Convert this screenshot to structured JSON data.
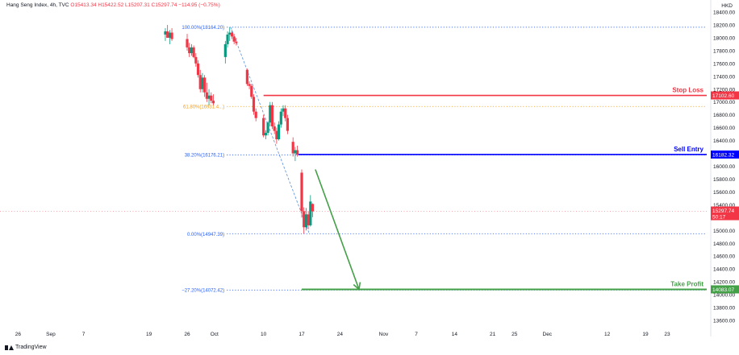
{
  "header": {
    "symbol": "Hang Seng Index, 4h, TVC",
    "open": "O15413.34",
    "high": "H15422.52",
    "low": "L15207.31",
    "close": "C15297.74",
    "change": "−114.95 (−0.75%)"
  },
  "currency": "HKD",
  "footer": {
    "brand": "TradingView"
  },
  "chart_data": {
    "type": "candlestick",
    "ylim": [
      13600,
      18400
    ],
    "y_ticks": [
      13600,
      13800,
      14000,
      14200,
      14400,
      14600,
      14800,
      15000,
      15200,
      15400,
      15600,
      15800,
      16000,
      16200,
      16400,
      16600,
      16800,
      17000,
      17200,
      17400,
      17600,
      17800,
      18000,
      18200,
      18400
    ],
    "x_labels": [
      {
        "label": "26",
        "day": -5
      },
      {
        "label": "Sep",
        "day": 1
      },
      {
        "label": "7",
        "day": 7
      },
      {
        "label": "19",
        "day": 19
      },
      {
        "label": "26",
        "day": 26
      },
      {
        "label": "Oct",
        "day": 31
      },
      {
        "label": "10",
        "day": 40
      },
      {
        "label": "17",
        "day": 47
      },
      {
        "label": "24",
        "day": 54
      },
      {
        "label": "Nov",
        "day": 62
      },
      {
        "label": "7",
        "day": 68
      },
      {
        "label": "14",
        "day": 75
      },
      {
        "label": "21",
        "day": 82
      },
      {
        "label": "25",
        "day": 86
      },
      {
        "label": "Dec",
        "day": 92
      },
      {
        "label": "12",
        "day": 103
      },
      {
        "label": "19",
        "day": 110
      },
      {
        "label": "23",
        "day": 114
      }
    ],
    "candles": [
      {
        "d": 22.0,
        "o": 18050,
        "h": 18150,
        "l": 17950,
        "c": 18100
      },
      {
        "d": 22.4,
        "o": 18100,
        "h": 18200,
        "l": 18000,
        "c": 18000
      },
      {
        "d": 22.8,
        "o": 18000,
        "h": 18120,
        "l": 17900,
        "c": 18080
      },
      {
        "d": 23.2,
        "o": 18080,
        "h": 18150,
        "l": 17950,
        "c": 17980
      },
      {
        "d": 26.0,
        "o": 17980,
        "h": 18060,
        "l": 17800,
        "c": 17850
      },
      {
        "d": 26.4,
        "o": 17850,
        "h": 17920,
        "l": 17700,
        "c": 17760
      },
      {
        "d": 26.8,
        "o": 17760,
        "h": 17900,
        "l": 17720,
        "c": 17850
      },
      {
        "d": 27.2,
        "o": 17850,
        "h": 17880,
        "l": 17680,
        "c": 17700
      },
      {
        "d": 27.6,
        "o": 17700,
        "h": 17760,
        "l": 17550,
        "c": 17600
      },
      {
        "d": 28.0,
        "o": 17600,
        "h": 17650,
        "l": 17380,
        "c": 17420
      },
      {
        "d": 28.4,
        "o": 17420,
        "h": 17500,
        "l": 17150,
        "c": 17200
      },
      {
        "d": 28.8,
        "o": 17200,
        "h": 17450,
        "l": 17150,
        "c": 17380
      },
      {
        "d": 29.2,
        "o": 17380,
        "h": 17420,
        "l": 17080,
        "c": 17150
      },
      {
        "d": 29.6,
        "o": 17150,
        "h": 17300,
        "l": 17000,
        "c": 17050
      },
      {
        "d": 30.0,
        "o": 17050,
        "h": 17200,
        "l": 16950,
        "c": 17100
      },
      {
        "d": 30.4,
        "o": 17100,
        "h": 17150,
        "l": 16980,
        "c": 17020
      },
      {
        "d": 30.8,
        "o": 17020,
        "h": 17120,
        "l": 16950,
        "c": 16980
      },
      {
        "d": 33.0,
        "o": 17700,
        "h": 17950,
        "l": 17600,
        "c": 17900
      },
      {
        "d": 33.4,
        "o": 17900,
        "h": 18100,
        "l": 17850,
        "c": 18050
      },
      {
        "d": 33.8,
        "o": 18050,
        "h": 18164,
        "l": 17950,
        "c": 18080
      },
      {
        "d": 34.2,
        "o": 18080,
        "h": 18120,
        "l": 17980,
        "c": 18020
      },
      {
        "d": 34.6,
        "o": 18020,
        "h": 18060,
        "l": 17900,
        "c": 17940
      },
      {
        "d": 35.0,
        "o": 17940,
        "h": 18000,
        "l": 17880,
        "c": 17920
      },
      {
        "d": 37.0,
        "o": 17500,
        "h": 17520,
        "l": 17250,
        "c": 17280
      },
      {
        "d": 37.4,
        "o": 17280,
        "h": 17320,
        "l": 17200,
        "c": 17250
      },
      {
        "d": 37.8,
        "o": 17250,
        "h": 17280,
        "l": 17050,
        "c": 17080
      },
      {
        "d": 38.2,
        "o": 17080,
        "h": 17120,
        "l": 16800,
        "c": 16850
      },
      {
        "d": 38.6,
        "o": 16850,
        "h": 16900,
        "l": 16700,
        "c": 16750
      },
      {
        "d": 40.0,
        "o": 16750,
        "h": 16800,
        "l": 16450,
        "c": 16480
      },
      {
        "d": 40.4,
        "o": 16480,
        "h": 16560,
        "l": 16420,
        "c": 16520
      },
      {
        "d": 40.8,
        "o": 16520,
        "h": 16700,
        "l": 16480,
        "c": 16680
      },
      {
        "d": 41.2,
        "o": 16680,
        "h": 17000,
        "l": 16620,
        "c": 16950
      },
      {
        "d": 41.6,
        "o": 16950,
        "h": 17000,
        "l": 16580,
        "c": 16620
      },
      {
        "d": 42.0,
        "o": 16620,
        "h": 16680,
        "l": 16500,
        "c": 16550
      },
      {
        "d": 42.4,
        "o": 16550,
        "h": 16600,
        "l": 16350,
        "c": 16420
      },
      {
        "d": 42.8,
        "o": 16420,
        "h": 16700,
        "l": 16400,
        "c": 16650
      },
      {
        "d": 43.2,
        "o": 16650,
        "h": 16900,
        "l": 16600,
        "c": 16850
      },
      {
        "d": 43.6,
        "o": 16850,
        "h": 16950,
        "l": 16780,
        "c": 16900
      },
      {
        "d": 44.0,
        "o": 16900,
        "h": 16950,
        "l": 16700,
        "c": 16750
      },
      {
        "d": 44.4,
        "o": 16750,
        "h": 16800,
        "l": 16500,
        "c": 16550
      },
      {
        "d": 45.4,
        "o": 16380,
        "h": 16450,
        "l": 16150,
        "c": 16200
      },
      {
        "d": 45.8,
        "o": 16200,
        "h": 16300,
        "l": 16080,
        "c": 16250
      },
      {
        "d": 46.2,
        "o": 16250,
        "h": 16320,
        "l": 16150,
        "c": 16180
      },
      {
        "d": 47.0,
        "o": 15900,
        "h": 15950,
        "l": 15200,
        "c": 15300
      },
      {
        "d": 47.4,
        "o": 15300,
        "h": 15360,
        "l": 14950,
        "c": 15050
      },
      {
        "d": 47.8,
        "o": 15050,
        "h": 15350,
        "l": 15000,
        "c": 15250
      },
      {
        "d": 48.2,
        "o": 15250,
        "h": 15300,
        "l": 15020,
        "c": 15080
      },
      {
        "d": 48.6,
        "o": 15080,
        "h": 15550,
        "l": 15060,
        "c": 15450
      },
      {
        "d": 49.0,
        "o": 15413,
        "h": 15422,
        "l": 15207,
        "c": 15297
      }
    ],
    "fibonacci": [
      {
        "level": "100.00%",
        "price": 18164.2,
        "label": "100.00%(18164.20)",
        "color": "#2962ff"
      },
      {
        "level": "61.80%",
        "price": 16931,
        "label": "61.80%(16931.4...)",
        "color": "#f59d0f"
      },
      {
        "level": "38.20%",
        "price": 16176.21,
        "label": "38.20%(16176.21)",
        "color": "#2962ff"
      },
      {
        "level": "0.00%",
        "price": 14947.39,
        "label": "0.00%(14947.39)",
        "color": "#2962ff"
      },
      {
        "level": "-27.20%",
        "price": 14072.42,
        "label": "−27.20%(14072.42)",
        "color": "#2962ff"
      }
    ],
    "levels": [
      {
        "name": "Stop Loss",
        "price": 17102.6,
        "tag": "17102.60",
        "color": "#f23645"
      },
      {
        "name": "Sell Entry",
        "price": 16182.32,
        "tag": "16182.32",
        "color": "#0000ff"
      },
      {
        "name": "Take Profit",
        "price": 14083.07,
        "tag": "14083.07",
        "color": "#43a047"
      }
    ],
    "current_price": {
      "price": 15297.74,
      "tag": "15297.74",
      "countdown": "50:17",
      "color": "#f23645"
    },
    "arrow": {
      "from_day": 49.5,
      "from_price": 15950,
      "to_day": 57.5,
      "to_price": 14083,
      "color": "#43a047"
    },
    "trend_line": {
      "from_day": 34.0,
      "from_price": 18164,
      "to_day": 48.4,
      "to_price": 14947,
      "color": "#5b8fd9"
    }
  }
}
